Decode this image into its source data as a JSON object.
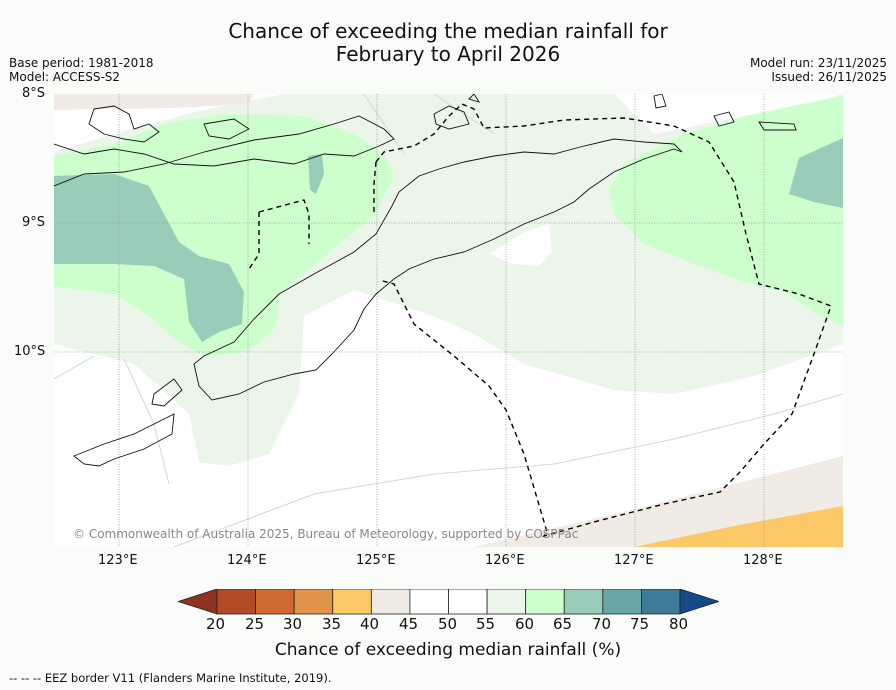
{
  "title": {
    "line1": "Chance of exceeding the median rainfall for",
    "line2": "February to April 2026"
  },
  "meta": {
    "base_period": "Base period: 1981-2018",
    "model": "Model: ACCESS-S2",
    "model_run": "Model run: 23/11/2025",
    "issued": "Issued: 26/11/2025"
  },
  "map": {
    "lat_labels": [
      "8°S",
      "9°S",
      "10°S"
    ],
    "lon_labels": [
      "123°E",
      "124°E",
      "125°E",
      "126°E",
      "127°E",
      "128°E"
    ],
    "copyright": "© Commonwealth of Australia 2025, Bureau of Meteorology, supported by COSPPac"
  },
  "colorbar": {
    "ticks": [
      "20",
      "25",
      "30",
      "35",
      "40",
      "45",
      "50",
      "55",
      "60",
      "65",
      "70",
      "75",
      "80"
    ],
    "colors": [
      "#b34a28",
      "#cf6a35",
      "#e2934a",
      "#fdc968",
      "#f1ebe6",
      "#ffffff",
      "#ffffff",
      "#ebf5ea",
      "#ccffcc",
      "#98cdb9",
      "#6aa5a7",
      "#3e7b98"
    ],
    "under_color": "#8e3420",
    "over_color": "#154a88",
    "label": "Chance of exceeding median rainfall (%)"
  },
  "footnote": "--  --  -- EEZ border V11 (Flanders Marine Institute, 2019)."
}
